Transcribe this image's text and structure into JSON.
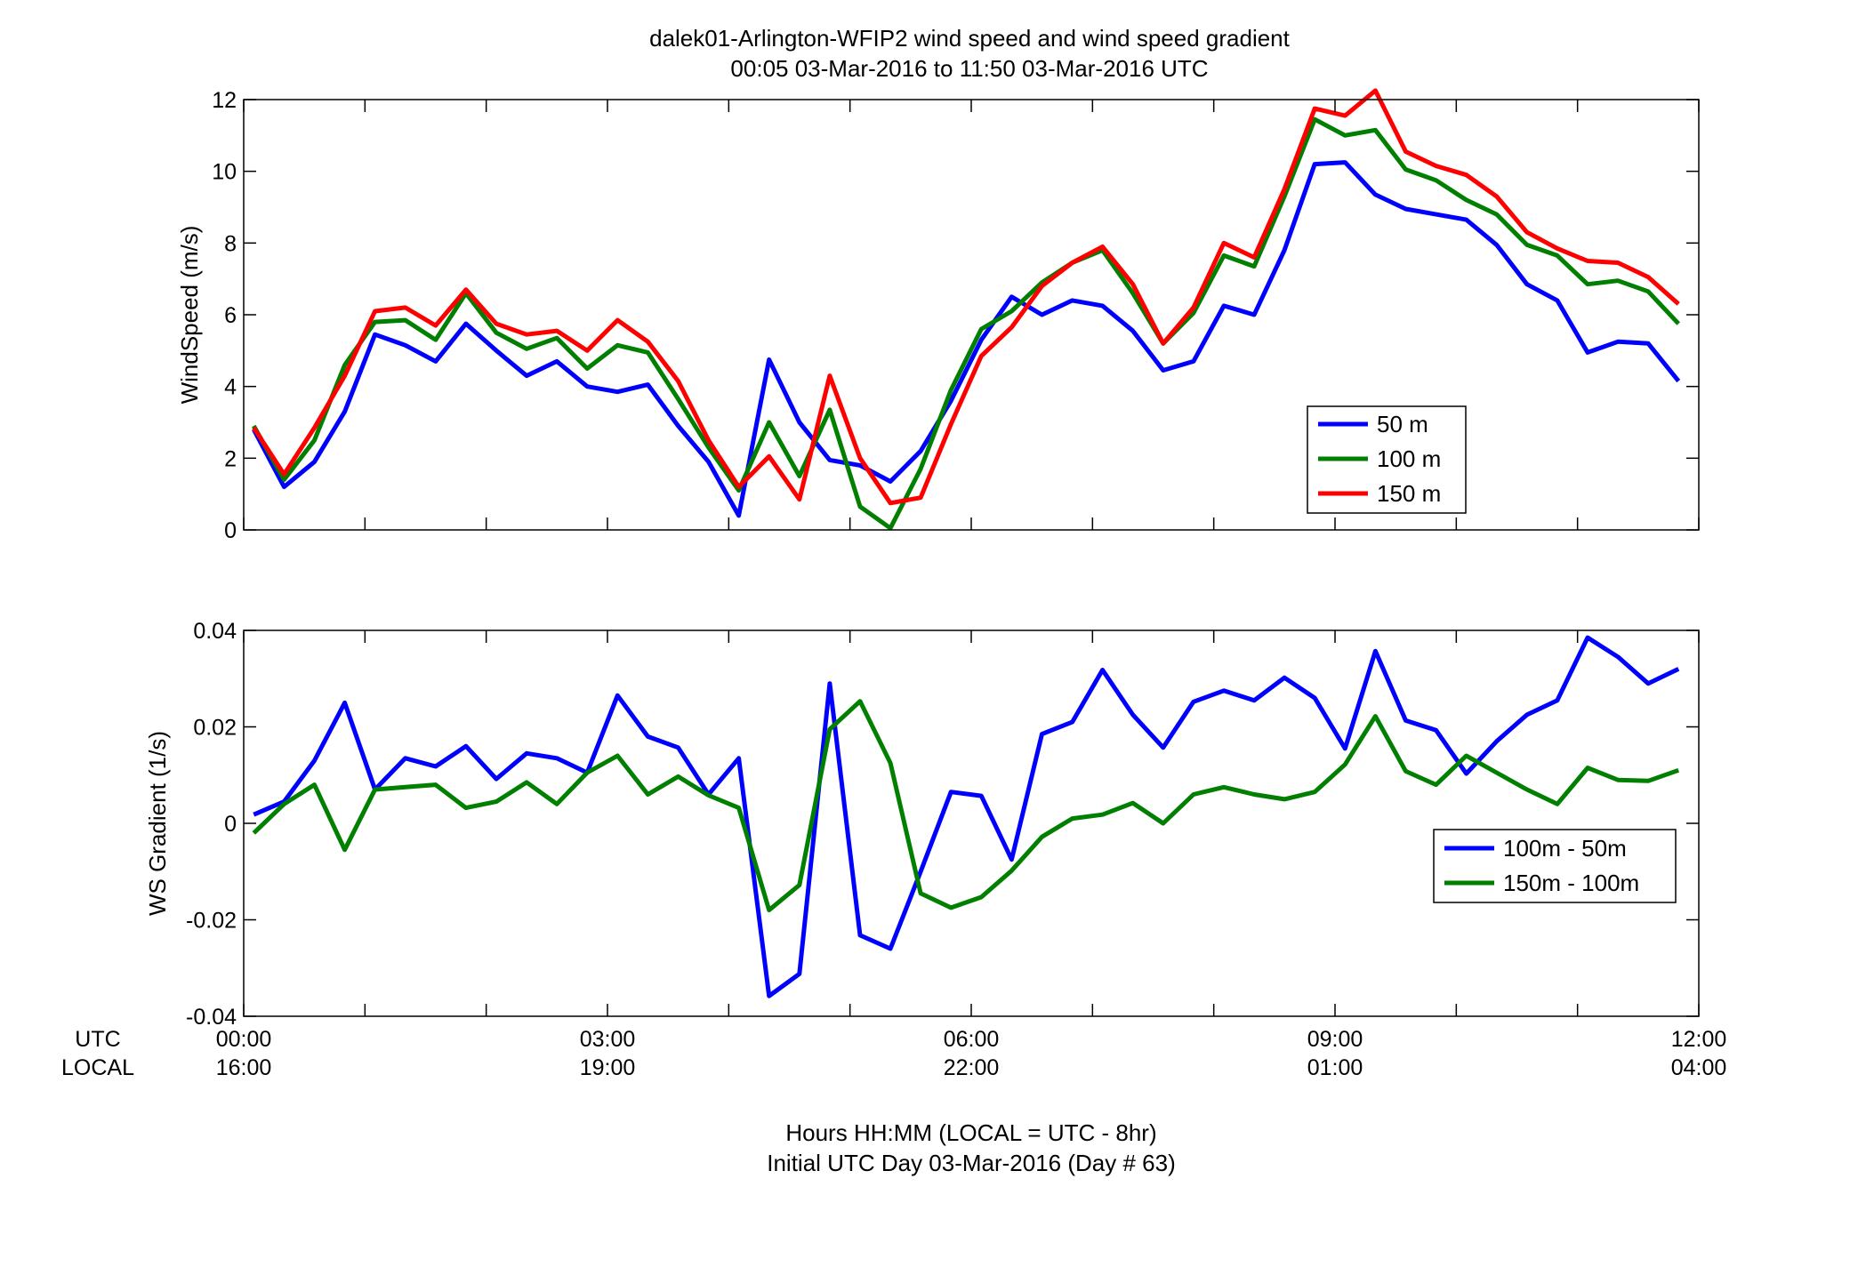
{
  "figure": {
    "title_line1": "dalek01-Arlington-WFIP2  wind speed and wind speed gradient",
    "title_line2": "00:05 03-Mar-2016 to 11:50 03-Mar-2016  UTC",
    "xlabel_line1": "Hours HH:MM  (LOCAL = UTC - 8hr)",
    "xlabel_line2": "Initial UTC Day 03-Mar-2016 (Day # 63)",
    "utc_label": "UTC",
    "local_label": "LOCAL",
    "utc_ticks": [
      "00:00",
      "03:00",
      "06:00",
      "09:00",
      "12:00"
    ],
    "local_ticks": [
      "16:00",
      "19:00",
      "22:00",
      "01:00",
      "04:00"
    ]
  },
  "colors": {
    "blue": "#0000FF",
    "green": "#007F00",
    "red": "#FF0000"
  },
  "chart_data": [
    {
      "type": "line",
      "ylabel": "WindSpeed (m/s)",
      "xlim": [
        0,
        12
      ],
      "ylim": [
        0,
        12
      ],
      "yticks": [
        0,
        2,
        4,
        6,
        8,
        10,
        12
      ],
      "grid": false,
      "legend_position": "lower-right",
      "x": [
        0.083,
        0.333,
        0.583,
        0.833,
        1.083,
        1.333,
        1.583,
        1.833,
        2.083,
        2.333,
        2.583,
        2.833,
        3.083,
        3.333,
        3.583,
        3.833,
        4.083,
        4.333,
        4.583,
        4.833,
        5.083,
        5.333,
        5.583,
        5.833,
        6.083,
        6.333,
        6.583,
        6.833,
        7.083,
        7.333,
        7.583,
        7.833,
        8.083,
        8.333,
        8.583,
        8.833,
        9.083,
        9.333,
        9.583,
        9.833,
        10.083,
        10.333,
        10.583,
        10.833,
        11.083,
        11.333,
        11.583,
        11.833
      ],
      "series": [
        {
          "name": "50 m",
          "color": "#0000FF",
          "values": [
            2.8,
            1.2,
            1.9,
            3.3,
            5.45,
            5.15,
            4.7,
            5.75,
            5.0,
            4.3,
            4.7,
            4.0,
            3.85,
            4.05,
            2.9,
            1.9,
            0.4,
            4.75,
            3.0,
            1.95,
            1.8,
            1.35,
            2.2,
            3.6,
            5.3,
            6.5,
            6.0,
            6.4,
            6.25,
            5.55,
            4.45,
            4.7,
            6.25,
            6.0,
            7.8,
            10.2,
            10.25,
            9.35,
            8.95,
            8.8,
            8.65,
            7.95,
            6.85,
            6.4,
            4.95,
            5.25,
            5.2,
            4.15
          ]
        },
        {
          "name": "100 m",
          "color": "#007F00",
          "values": [
            2.9,
            1.4,
            2.5,
            4.6,
            5.8,
            5.85,
            5.3,
            6.6,
            5.5,
            5.05,
            5.35,
            4.5,
            5.15,
            4.95,
            3.65,
            2.3,
            1.1,
            3.0,
            1.5,
            3.35,
            0.65,
            0.05,
            1.7,
            3.9,
            5.6,
            6.1,
            6.9,
            7.45,
            7.8,
            6.6,
            5.2,
            6.05,
            7.65,
            7.35,
            9.3,
            11.45,
            11.0,
            11.15,
            10.05,
            9.75,
            9.2,
            8.8,
            7.95,
            7.65,
            6.85,
            6.95,
            6.65,
            5.75
          ]
        },
        {
          "name": "150 m",
          "color": "#FF0000",
          "values": [
            2.85,
            1.55,
            2.85,
            4.3,
            6.1,
            6.2,
            5.7,
            6.7,
            5.75,
            5.45,
            5.55,
            5.0,
            5.85,
            5.25,
            4.15,
            2.5,
            1.2,
            2.05,
            0.85,
            4.3,
            2.0,
            0.75,
            0.9,
            2.95,
            4.85,
            5.65,
            6.8,
            7.45,
            7.9,
            6.85,
            5.2,
            6.2,
            8.0,
            7.6,
            9.5,
            11.75,
            11.55,
            12.25,
            10.55,
            10.15,
            9.9,
            9.3,
            8.3,
            7.85,
            7.5,
            7.45,
            7.05,
            6.3
          ]
        }
      ]
    },
    {
      "type": "line",
      "ylabel": "WS Gradient (1/s)",
      "xlim": [
        0,
        12
      ],
      "ylim": [
        -0.04,
        0.04
      ],
      "yticks": [
        -0.04,
        -0.02,
        0,
        0.02,
        0.04
      ],
      "ytick_labels": [
        "-0.04",
        "-0.02",
        "0",
        "0.02",
        "0.04"
      ],
      "grid": false,
      "legend_position": "lower-right",
      "x": [
        0.083,
        0.333,
        0.583,
        0.833,
        1.083,
        1.333,
        1.583,
        1.833,
        2.083,
        2.333,
        2.583,
        2.833,
        3.083,
        3.333,
        3.583,
        3.833,
        4.083,
        4.333,
        4.583,
        4.833,
        5.083,
        5.333,
        5.583,
        5.833,
        6.083,
        6.333,
        6.583,
        6.833,
        7.083,
        7.333,
        7.583,
        7.833,
        8.083,
        8.333,
        8.583,
        8.833,
        9.083,
        9.333,
        9.583,
        9.833,
        10.083,
        10.333,
        10.583,
        10.833,
        11.083,
        11.333,
        11.583,
        11.833
      ],
      "series": [
        {
          "name": "100m - 50m",
          "color": "#0000FF",
          "values": [
            0.0018,
            0.0045,
            0.013,
            0.025,
            0.007,
            0.0135,
            0.0118,
            0.016,
            0.0092,
            0.0145,
            0.0135,
            0.0105,
            0.0265,
            0.018,
            0.0157,
            0.006,
            0.0135,
            -0.0358,
            -0.0312,
            0.029,
            -0.0232,
            -0.026,
            -0.01,
            0.0065,
            0.0057,
            -0.0075,
            0.0185,
            0.021,
            0.0318,
            0.0225,
            0.0157,
            0.0252,
            0.0275,
            0.0255,
            0.0302,
            0.026,
            0.0155,
            0.0357,
            0.0213,
            0.0193,
            0.0103,
            0.017,
            0.0225,
            0.0255,
            0.0385,
            0.0345,
            0.029,
            0.032
          ]
        },
        {
          "name": "150m - 100m",
          "color": "#007F00",
          "values": [
            -0.002,
            0.004,
            0.008,
            -0.0055,
            0.007,
            0.0075,
            0.008,
            0.0032,
            0.0045,
            0.0085,
            0.004,
            0.0105,
            0.014,
            0.006,
            0.0097,
            0.0058,
            0.0032,
            -0.018,
            -0.0128,
            0.0195,
            0.0253,
            0.0125,
            -0.0145,
            -0.0175,
            -0.0153,
            -0.0098,
            -0.0028,
            0.001,
            0.0018,
            0.0042,
            0.0,
            0.006,
            0.0075,
            0.006,
            0.005,
            0.0065,
            0.0122,
            0.0222,
            0.0108,
            0.008,
            0.014,
            0.0105,
            0.007,
            0.004,
            0.0115,
            0.009,
            0.0088,
            0.011
          ]
        }
      ]
    }
  ]
}
